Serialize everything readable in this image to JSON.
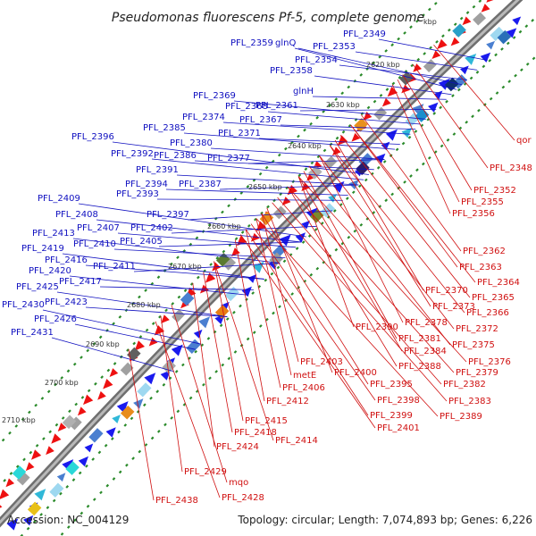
{
  "title": "Pseudomonas fluorescens Pf-5, complete genome",
  "accession": "Accession: NC_004129",
  "summary": "Topology: circular; Length: 7,074,893 bp; Genes: 6,226",
  "colors": {
    "forward": "#1a1aee",
    "reverse": "#ee1111",
    "backbone": "#888888",
    "tick": "#2a8a2a",
    "blue_label": "#1010c0",
    "red_label": "#d01010"
  },
  "kbp_marks": [
    "kbp",
    "2620 kbp",
    "2630 kbp",
    "2640 kbp",
    "2650 kbp",
    "2660 kbp",
    "2670 kbp",
    "2680 kbp",
    "2690 kbp",
    "2700 kbp",
    "2710 kbp"
  ],
  "forward_labels": [
    "PFL_2349",
    "PFL_2353",
    "PFL_2354",
    "PFL_2358",
    "PFL_2359",
    "glnQ",
    "glnH",
    "PFL_2361",
    "PFL_2369",
    "PFL_2368",
    "PFL_2374",
    "PFL_2367",
    "PFL_2385",
    "PFL_2371",
    "PFL_2396",
    "PFL_2380",
    "PFL_2392",
    "PFL_2386",
    "PFL_2377",
    "PFL_2391",
    "PFL_2394",
    "PFL_2387",
    "PFL_2393",
    "PFL_2409",
    "PFL_2408",
    "PFL_2397",
    "PFL_2407",
    "PFL_2402",
    "PFL_2413",
    "PFL_2410",
    "PFL_2405",
    "PFL_2419",
    "PFL_2416",
    "PFL_2411",
    "PFL_2420",
    "PFL_2417",
    "PFL_2425",
    "PFL_2423",
    "PFL_2430",
    "PFL_2426",
    "PFL_2431"
  ],
  "reverse_labels": [
    "qor",
    "PFL_2348",
    "PFL_2352",
    "PFL_2355",
    "PFL_2356",
    "PFL_2362",
    "PFL_2363",
    "PFL_2364",
    "PFL_2370",
    "PFL_2365",
    "PFL_2373",
    "PFL_2366",
    "PFL_2378",
    "PFL_2372",
    "PFL_2390",
    "PFL_2381",
    "PFL_2375",
    "PFL_2384",
    "PFL_2376",
    "PFL_2388",
    "PFL_2379",
    "PFL_2382",
    "PFL_2403",
    "PFL_2383",
    "metE",
    "PFL_2400",
    "PFL_2395",
    "PFL_2406",
    "PFL_2398",
    "PFL_2389",
    "PFL_2412",
    "PFL_2399",
    "PFL_2401",
    "PFL_2415",
    "PFL_2418",
    "PFL_2414",
    "PFL_2424",
    "PFL_2429",
    "mqo",
    "PFL_2428",
    "PFL_2438"
  ]
}
